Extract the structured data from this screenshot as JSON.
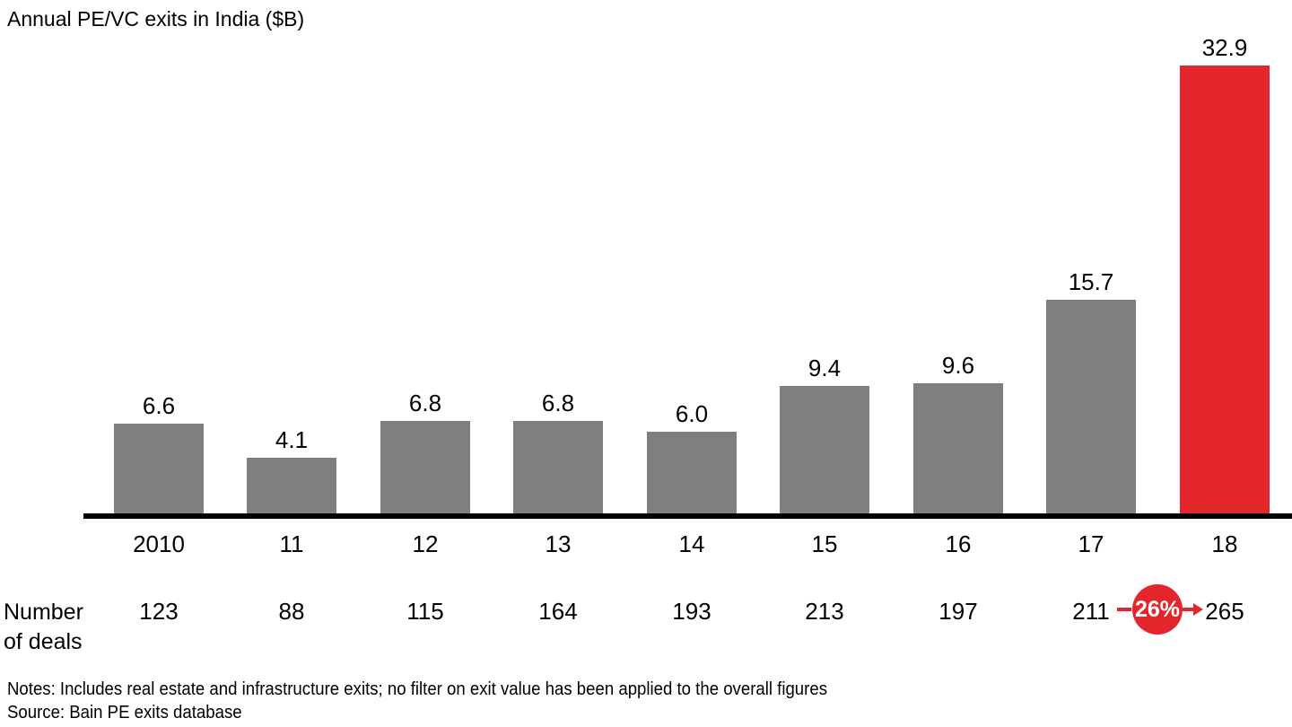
{
  "chart_data": {
    "type": "bar",
    "title": "Annual PE/VC exits in India ($B)",
    "categories": [
      "2010",
      "11",
      "12",
      "13",
      "14",
      "15",
      "16",
      "17",
      "18"
    ],
    "values": [
      6.6,
      4.1,
      6.8,
      6.8,
      6.0,
      9.4,
      9.6,
      15.7,
      32.9
    ],
    "value_labels": [
      "6.6",
      "4.1",
      "6.8",
      "6.8",
      "6.0",
      "9.4",
      "9.6",
      "15.7",
      "32.9"
    ],
    "highlight_index": 8,
    "bar_color": "#7f7f7f",
    "highlight_color": "#e3262c",
    "ylim": [
      0,
      33
    ],
    "grid": false,
    "legend": "none",
    "xlabel": "",
    "ylabel": "",
    "deals": {
      "label_line1": "Number",
      "label_line2": "of deals",
      "values": [
        "123",
        "88",
        "115",
        "164",
        "193",
        "213",
        "197",
        "211",
        "265"
      ],
      "badge": {
        "text": "26%",
        "between": [
          "211",
          "265"
        ],
        "color": "#e3262c"
      }
    }
  },
  "footer": {
    "notes": "Notes: Includes real estate and infrastructure exits; no filter on exit value has been applied to the overall figures",
    "source": "Source: Bain PE exits database"
  }
}
